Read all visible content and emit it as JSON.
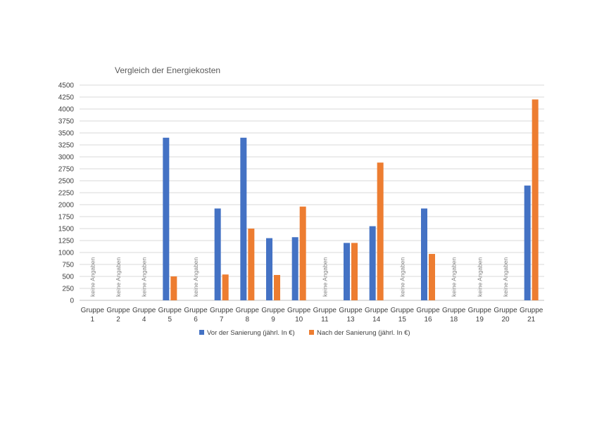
{
  "chart_data": {
    "type": "bar",
    "title": "Vergleich der Energiekosten",
    "xlabel": "",
    "ylabel": "",
    "ylim": [
      0,
      4500
    ],
    "yticks": [
      0,
      250,
      500,
      750,
      1000,
      1250,
      1500,
      1750,
      2000,
      2250,
      2500,
      2750,
      3000,
      3250,
      3500,
      3750,
      4000,
      4250,
      4500
    ],
    "grid": true,
    "legend_position": "bottom",
    "category_prefix": "Gruppe",
    "categories": [
      "1",
      "2",
      "4",
      "5",
      "6",
      "7",
      "8",
      "9",
      "10",
      "11",
      "13",
      "14",
      "15",
      "16",
      "18",
      "19",
      "20",
      "21"
    ],
    "no_data_label": "keine Angaben",
    "no_data_categories": [
      "1",
      "2",
      "4",
      "6",
      "11",
      "15",
      "18",
      "19",
      "20"
    ],
    "series": [
      {
        "name": "Vor der Sanierung (jährl. In €)",
        "color": "#4472C4",
        "values": [
          null,
          null,
          null,
          3400,
          null,
          1920,
          3400,
          1300,
          1320,
          null,
          1200,
          1550,
          null,
          1920,
          null,
          null,
          null,
          2400
        ]
      },
      {
        "name": "Nach der Sanierung (jährl. In €)",
        "color": "#ED7D31",
        "values": [
          null,
          null,
          null,
          500,
          null,
          540,
          1500,
          530,
          1960,
          null,
          1200,
          2880,
          null,
          970,
          null,
          null,
          null,
          4200
        ]
      }
    ]
  }
}
